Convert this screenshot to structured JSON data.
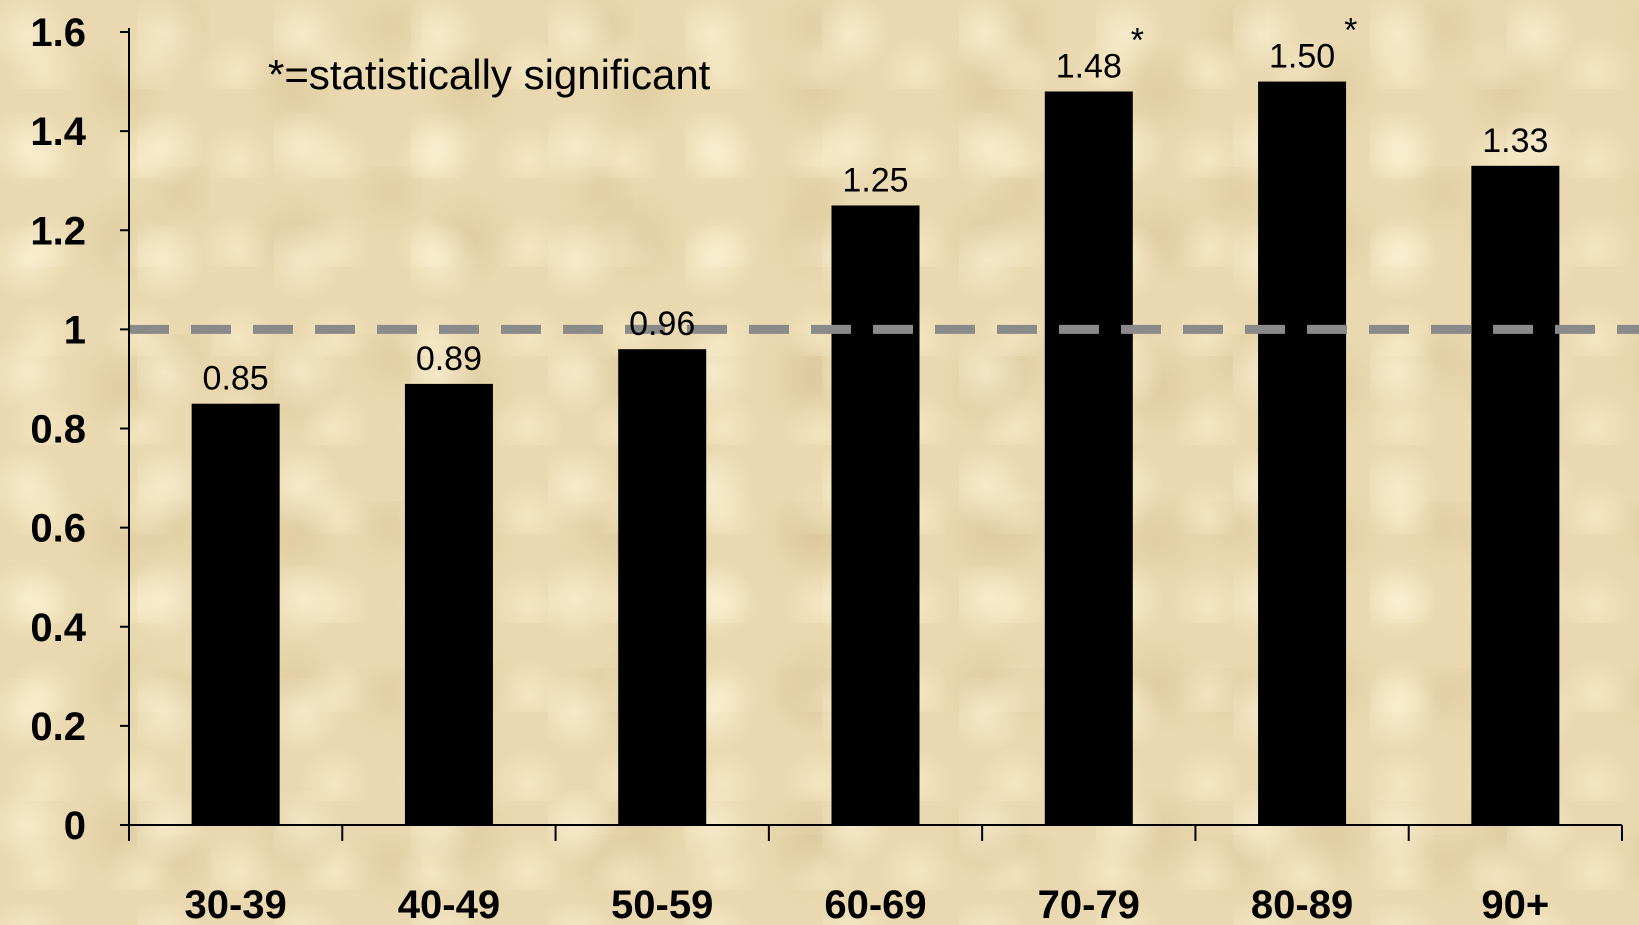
{
  "chart_data": {
    "type": "bar",
    "categories": [
      "30-39",
      "40-49",
      "50-59",
      "60-69",
      "70-79",
      "80-89",
      "90+"
    ],
    "values": [
      0.85,
      0.89,
      0.96,
      1.25,
      1.48,
      1.5,
      1.33
    ],
    "data_labels": [
      "0.85",
      "0.89",
      "0.96",
      "1.25",
      "1.48",
      "1.50",
      "1.33"
    ],
    "significant": [
      false,
      false,
      false,
      false,
      true,
      true,
      false
    ],
    "significance_marker": "*",
    "annotation": "*=statistically significant",
    "yticks": [
      "0",
      "0.2",
      "0.4",
      "0.6",
      "0.8",
      "1",
      "1.2",
      "1.4",
      "1.6"
    ],
    "ylim": [
      0,
      1.6
    ],
    "reference_line": 1,
    "grid": false,
    "colors": {
      "bar": "#000000",
      "reference_line": "#8a8a8a",
      "axis": "#000000"
    }
  }
}
